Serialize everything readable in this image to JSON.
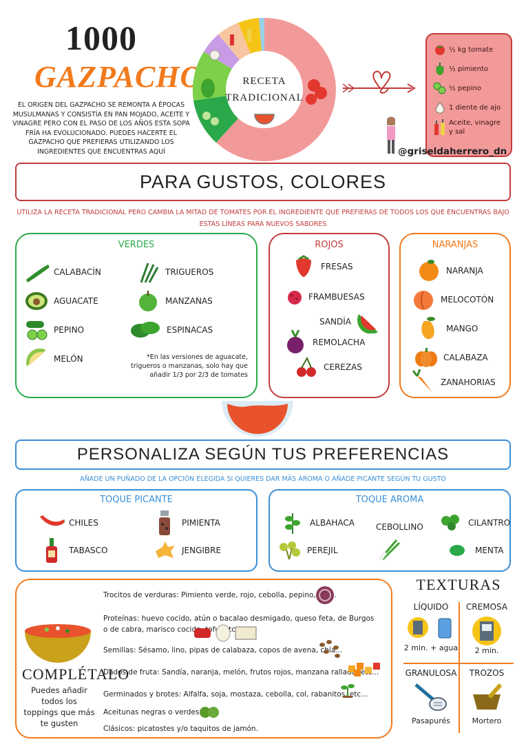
{
  "header": {
    "title_number": "1000",
    "title_word": "GAZPACHOS",
    "intro": "El origen del gazpacho se remonta a épocas musulmanas y consistía en pan mojado, aceite y vinagre pero con el paso de los años esta sopa fría ha evolucionado. Puedes hacerte el gazpacho que prefieras utilizando los ingredientes que encuentras aquí",
    "donut_label_1": "RECETA",
    "donut_label_2": "TRADICIONAL",
    "handle": "@griseldaherrero_dn"
  },
  "recipe": [
    {
      "icon": "tomato-icon",
      "text": "½ kg tomate"
    },
    {
      "icon": "pepper-icon",
      "text": "½ pimiento"
    },
    {
      "icon": "cucumber-icon",
      "text": "½ pepino"
    },
    {
      "icon": "garlic-icon",
      "text": "1 diente de ajo"
    },
    {
      "icon": "oil-vinegar-icon",
      "text": "Aceite, vinagre y sal"
    }
  ],
  "colores": {
    "banner": "PARA GUSTOS, COLORES",
    "subtitle": "Utiliza la receta tradicional pero cambia la mitad de tomates por el ingrediente que prefieras de todos los que encuentras bajo estas líneas para nuevos sabores",
    "verdes": {
      "title": "VERDES",
      "items": [
        "CALABACÍN",
        "AGUACATE",
        "PEPINO",
        "MELÓN",
        "TRIGUEROS",
        "MANZANAS",
        "ESPINACAS"
      ],
      "note": "*En las versiones de aguacate, trigueros o manzanas, solo hay que añadir 1/3 por 2/3 de tomates"
    },
    "rojos": {
      "title": "ROJOS",
      "items": [
        "FRESAS",
        "FRAMBUESAS",
        "SANDÍA",
        "REMOLACHA",
        "CEREZAS"
      ]
    },
    "naranjas": {
      "title": "NARANJAS",
      "items": [
        "NARANJA",
        "MELOCOTÓN",
        "MANGO",
        "CALABAZA",
        "ZANAHORIAS"
      ]
    }
  },
  "preferencias": {
    "banner": "PERSONALIZA SEGÚN TUS PREFERENCIAS",
    "subtitle": "Añade un puñado de la opción elegida si quieres dar más aroma o añade picante según tu gusto",
    "picante": {
      "title": "TOQUE PICANTE",
      "items": [
        "CHILES",
        "TABASCO",
        "PIMIENTA",
        "JENGIBRE"
      ]
    },
    "aroma": {
      "title": "TOQUE AROMA",
      "items": [
        "ALBAHACA",
        "PEREJIL",
        "CEBOLLINO",
        "CILANTRO",
        "MENTA"
      ]
    }
  },
  "completalo": {
    "title": "COMPLÉTALO",
    "subtitle": "Puedes añadir todos los toppings que más te gusten",
    "toppings": [
      "Trocitos de verduras: Pimiento verde, rojo, cebolla, pepino, etc...",
      "Proteínas: huevo cocido, atún o bacalao desmigado, queso feta, de Burgos o de cabra, marisco cocido, tofu, etc.",
      "Semillas: Sésamo, lino, pipas de calabaza, copos de avena, chía...",
      "Dados de fruta: Sandía, naranja, melón, frutos rojos, manzana rallada, etc...",
      "Germinados y brotes: Alfalfa, soja, mostaza, cebolla, col, rabanitos, etc...",
      "Aceitunas negras o verdes:",
      "Clásicos: picatostes y/o taquitos de jamón."
    ]
  },
  "texturas": {
    "title": "TEXTURAS",
    "cells": [
      {
        "label": "LÍQUIDO",
        "sub": "2 min. + agua"
      },
      {
        "label": "CREMOSA",
        "sub": "2 min."
      },
      {
        "label": "GRANULOSA",
        "sub": "Pasapurés"
      },
      {
        "label": "TROZOS",
        "sub": "Mortero"
      }
    ]
  },
  "colors": {
    "red": "#c23b3b",
    "green": "#2aa84a",
    "orange": "#f27a1c",
    "blue": "#3a8fd6",
    "pink": "#f29a9a"
  }
}
